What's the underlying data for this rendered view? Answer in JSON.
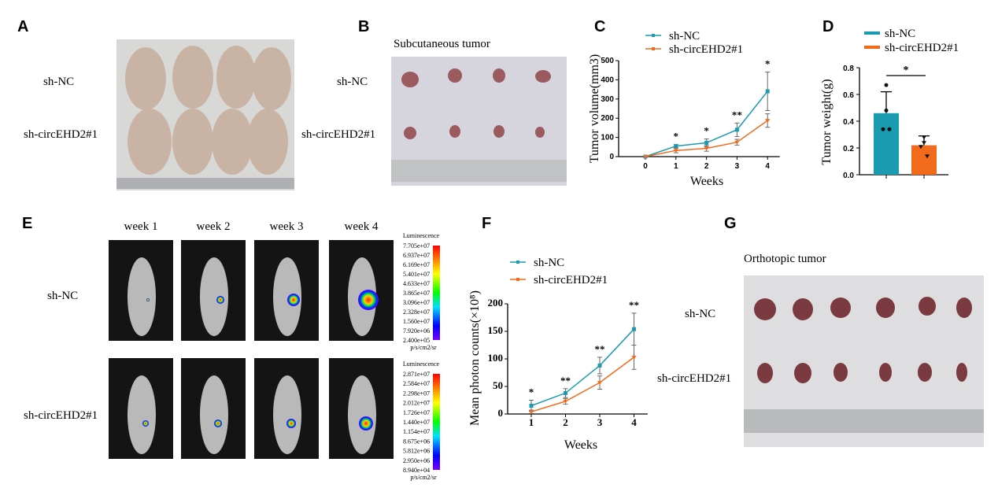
{
  "panels": {
    "A": {
      "label": "A",
      "rows": [
        "sh-NC",
        "sh-circEHD2#1"
      ]
    },
    "B": {
      "label": "B",
      "title": "Subcutaneous tumor",
      "rows": [
        "sh-NC",
        "sh-circEHD2#1"
      ]
    },
    "C": {
      "label": "C"
    },
    "D": {
      "label": "D"
    },
    "E": {
      "label": "E",
      "weeks": [
        "week 1",
        "week 2",
        "week 3",
        "week 4"
      ],
      "rows": [
        "sh-NC",
        "sh-circEHD2#1"
      ],
      "colorbars": [
        {
          "title": "Luminescence",
          "unit": "p/s/cm2/sr",
          "ticks": [
            "7.705e+07",
            "6.937e+07",
            "6.169e+07",
            "5.401e+07",
            "4.633e+07",
            "3.865e+07",
            "3.096e+07",
            "2.328e+07",
            "1.560e+07",
            "7.920e+06",
            "2.400e+05"
          ]
        },
        {
          "title": "Luminescence",
          "unit": "p/s/cm2/sr",
          "ticks": [
            "2.871e+07",
            "2.584e+07",
            "2.298e+07",
            "2.012e+07",
            "1.726e+07",
            "1.440e+07",
            "1.154e+07",
            "8.675e+06",
            "5.812e+06",
            "2.950e+06",
            "8.940e+04"
          ]
        }
      ]
    },
    "F": {
      "label": "F"
    },
    "G": {
      "label": "G",
      "title": "Orthotopic tumor",
      "rows": [
        "sh-NC",
        "sh-circEHD2#1"
      ]
    }
  },
  "colors": {
    "nc": "#1a9bb0",
    "circ": "#f26b1d"
  },
  "chart_data": [
    {
      "panel": "C",
      "type": "line",
      "xlabel": "Weeks",
      "ylabel": "Tumor volume(mm3)",
      "x": [
        0,
        1,
        2,
        3,
        4
      ],
      "ylim": [
        0,
        500
      ],
      "yticks": [
        0,
        100,
        200,
        300,
        400,
        500
      ],
      "series": [
        {
          "name": "sh-NC",
          "values": [
            0,
            55,
            72,
            140,
            340
          ],
          "errors": [
            0,
            8,
            20,
            35,
            100
          ]
        },
        {
          "name": "sh-circEHD2#1",
          "values": [
            0,
            32,
            43,
            75,
            188
          ],
          "errors": [
            0,
            12,
            15,
            15,
            35
          ]
        }
      ],
      "significance": [
        "",
        "*",
        "*",
        "**",
        "*"
      ],
      "legend": "top"
    },
    {
      "panel": "D",
      "type": "bar",
      "ylabel": "Tumor weight(g)",
      "categories": [
        "sh-NC",
        "sh-circEHD2#1"
      ],
      "ylim": [
        0,
        0.8
      ],
      "yticks": [
        "0.0",
        "0.2",
        "0.4",
        "0.6",
        "0.8"
      ],
      "values": [
        0.46,
        0.22
      ],
      "errors": [
        0.16,
        0.07
      ],
      "points": [
        [
          0.67,
          0.48,
          0.34,
          0.34
        ],
        [
          0.28,
          0.24,
          0.21,
          0.14
        ]
      ],
      "significance": "*",
      "legend": "top"
    },
    {
      "panel": "F",
      "type": "line",
      "xlabel": "Weeks",
      "ylabel": "Mean photon counts(×10⁸)",
      "x": [
        1,
        2,
        3,
        4
      ],
      "ylim": [
        0,
        200
      ],
      "yticks": [
        0,
        50,
        100,
        150,
        200
      ],
      "series": [
        {
          "name": "sh-NC",
          "values": [
            15,
            38,
            88,
            154
          ],
          "errors": [
            10,
            8,
            15,
            29
          ]
        },
        {
          "name": "sh-circEHD2#1",
          "values": [
            4,
            23,
            57,
            103
          ],
          "errors": [
            3,
            5,
            12,
            22
          ]
        }
      ],
      "significance": [
        "*",
        "**",
        "**",
        "**"
      ],
      "legend": "top-left"
    }
  ]
}
